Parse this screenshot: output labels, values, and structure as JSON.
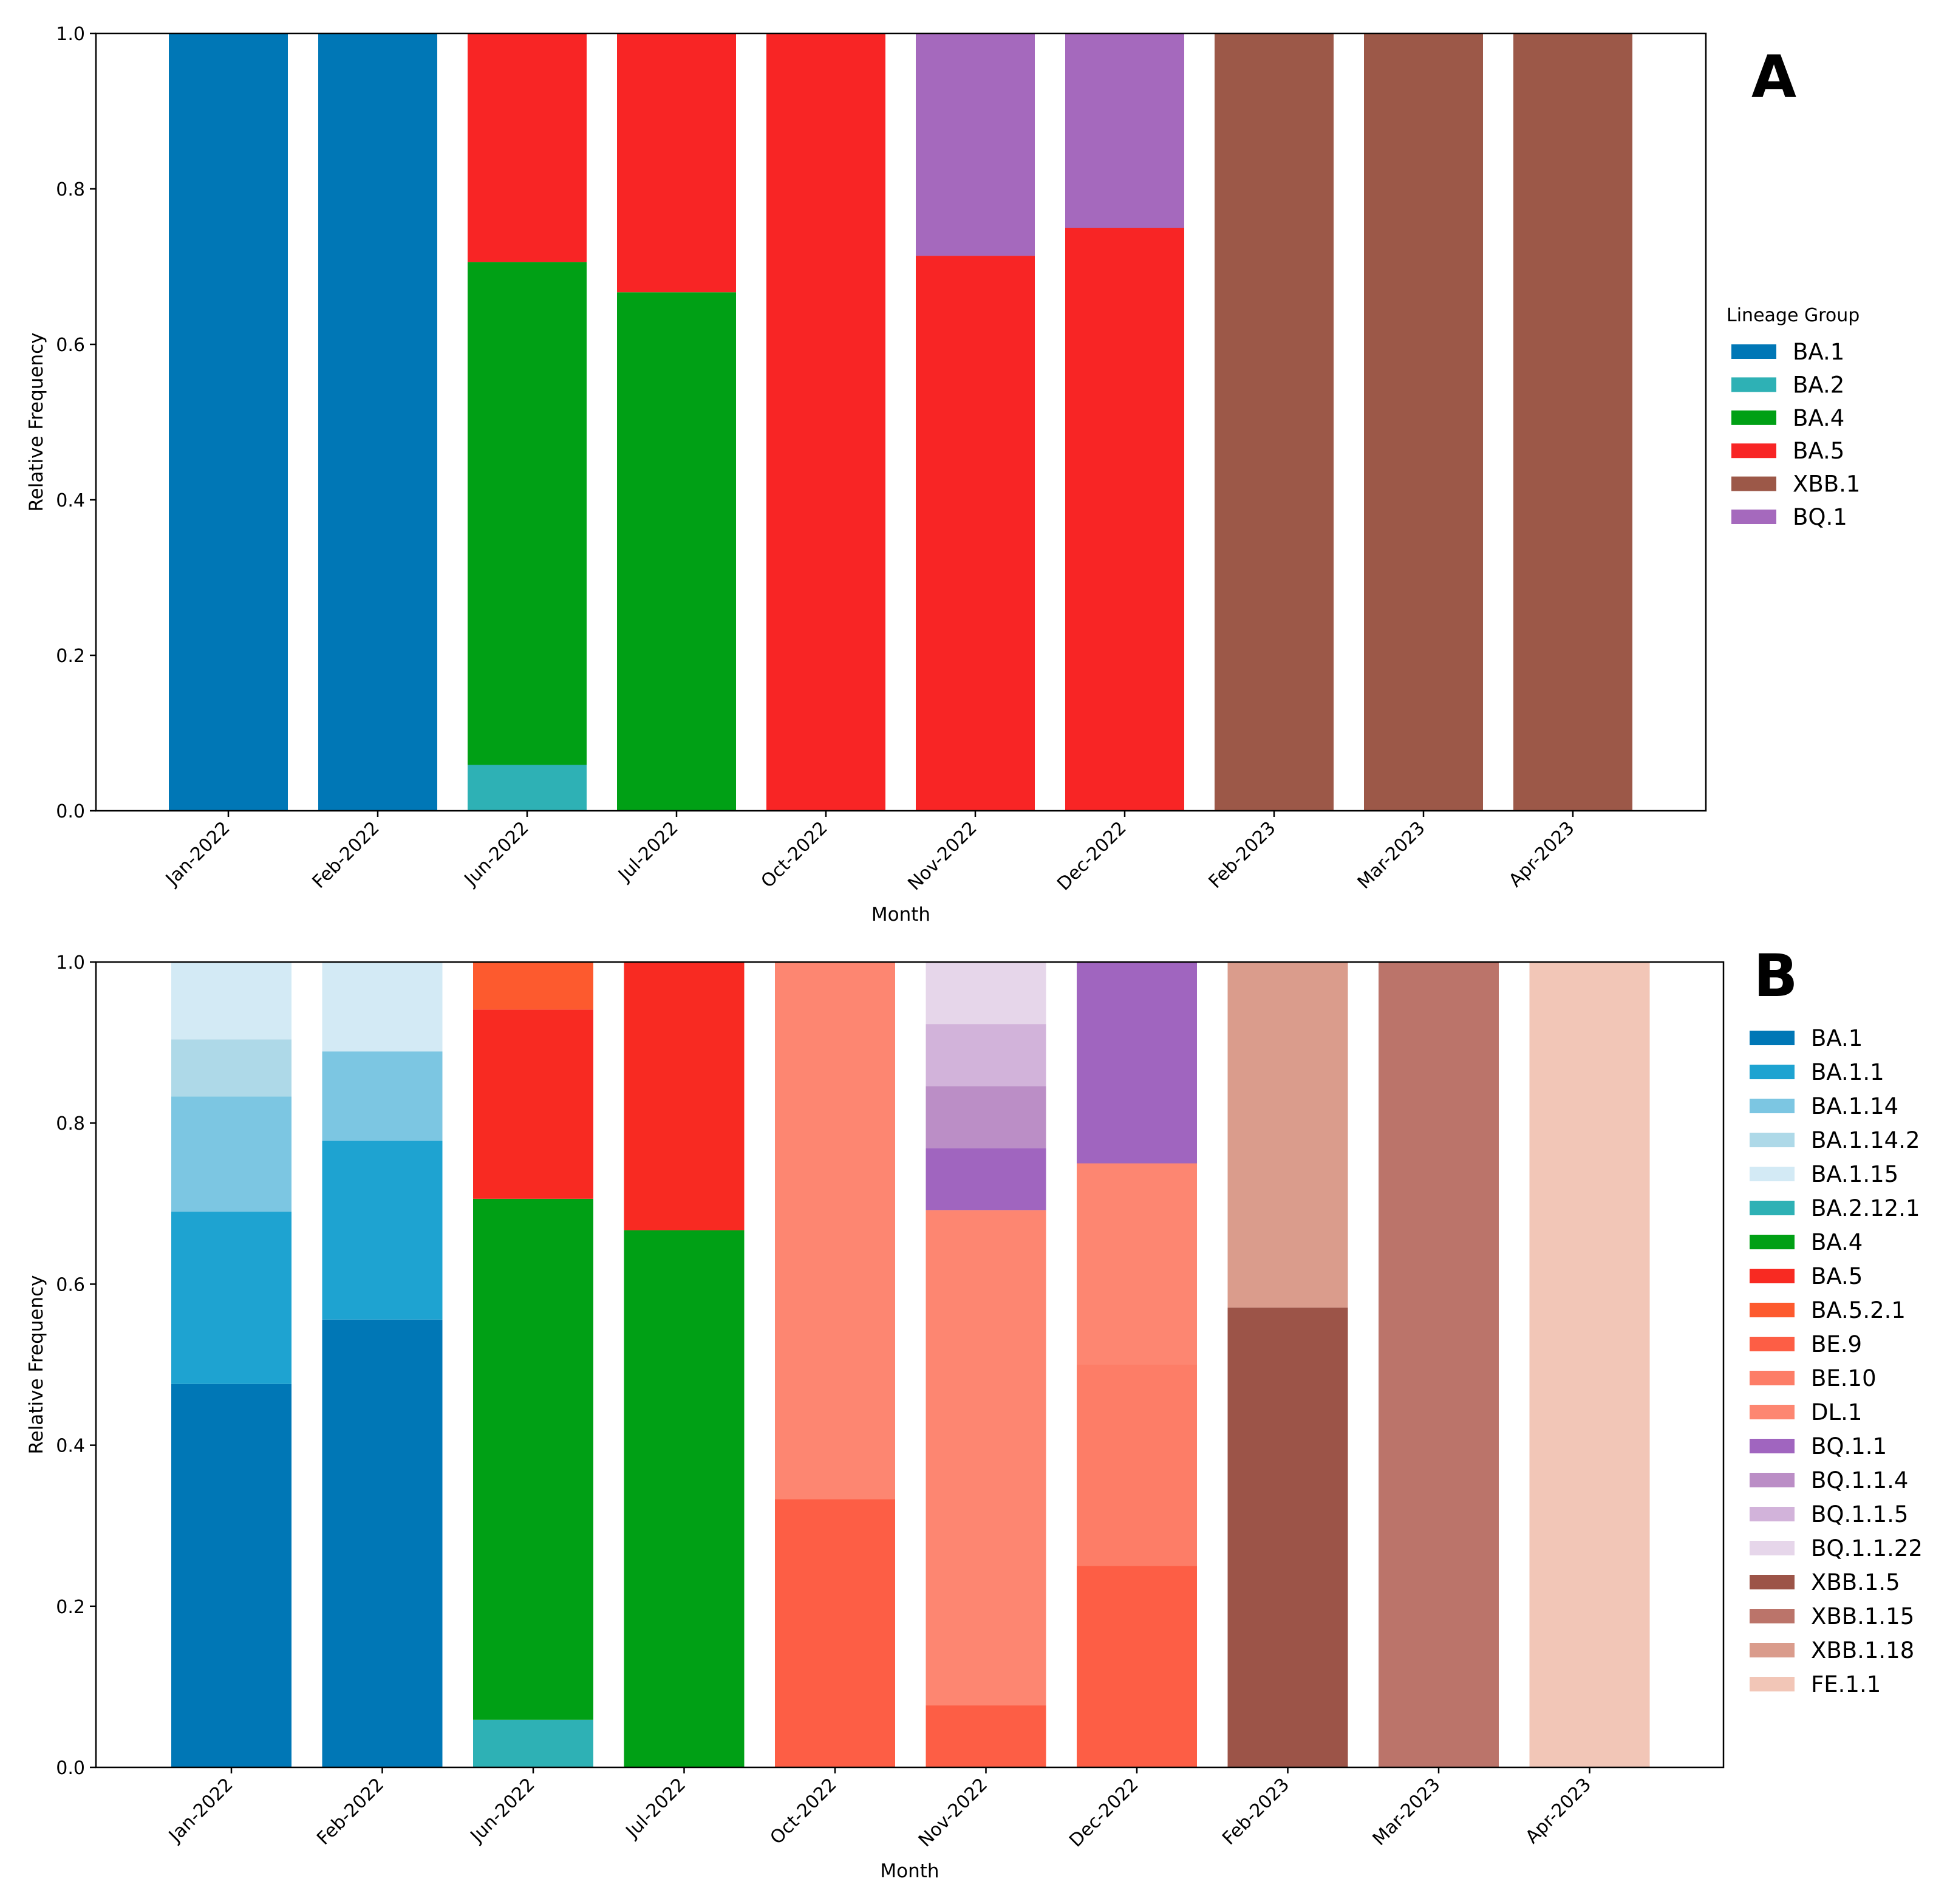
{
  "chart_data": [
    {
      "type": "bar",
      "stacked": true,
      "panel_label": "A",
      "xlabel": "Month",
      "ylabel": "Relative Frequency",
      "ylim": [
        0,
        1.0
      ],
      "yticks": [
        "0.0",
        "0.2",
        "0.4",
        "0.6",
        "0.8",
        "1.0"
      ],
      "grid": false,
      "legend_title": "Lineage Group",
      "legend_position": "right",
      "categories": [
        "Jan-2022",
        "Feb-2022",
        "Jun-2022",
        "Jul-2022",
        "Oct-2022",
        "Nov-2022",
        "Dec-2022",
        "Feb-2023",
        "Mar-2023",
        "Apr-2023"
      ],
      "series": [
        {
          "name": "BA.1",
          "color": "#0077b6",
          "values": [
            1.0,
            1.0,
            0,
            0,
            0,
            0,
            0,
            0,
            0,
            0
          ]
        },
        {
          "name": "BA.2",
          "color": "#2eb1b5",
          "values": [
            0,
            0,
            0.059,
            0,
            0,
            0,
            0,
            0,
            0,
            0
          ]
        },
        {
          "name": "BA.4",
          "color": "#00a015",
          "values": [
            0,
            0,
            0.647,
            0.667,
            0,
            0,
            0,
            0,
            0,
            0
          ]
        },
        {
          "name": "BA.5",
          "color": "#f82525",
          "values": [
            0,
            0,
            0.294,
            0.333,
            1.0,
            0.714,
            0.75,
            0,
            0,
            0
          ]
        },
        {
          "name": "XBB.1",
          "color": "#9c5848",
          "values": [
            0,
            0,
            0,
            0,
            0,
            0,
            0,
            1.0,
            1.0,
            1.0
          ]
        },
        {
          "name": "BQ.1",
          "color": "#a569bd",
          "values": [
            0,
            0,
            0,
            0,
            0,
            0.286,
            0.25,
            0,
            0,
            0
          ]
        }
      ]
    },
    {
      "type": "bar",
      "stacked": true,
      "panel_label": "B",
      "xlabel": "Month",
      "ylabel": "Relative Frequency",
      "ylim": [
        0,
        1.0
      ],
      "yticks": [
        "0.0",
        "0.2",
        "0.4",
        "0.6",
        "0.8",
        "1.0"
      ],
      "grid": false,
      "legend_position": "right",
      "categories": [
        "Jan-2022",
        "Feb-2022",
        "Jun-2022",
        "Jul-2022",
        "Oct-2022",
        "Nov-2022",
        "Dec-2022",
        "Feb-2023",
        "Mar-2023",
        "Apr-2023"
      ],
      "series": [
        {
          "name": "BA.1",
          "color": "#0077b6",
          "values": [
            0.476,
            0.556,
            0,
            0,
            0,
            0,
            0,
            0,
            0,
            0
          ]
        },
        {
          "name": "BA.1.1",
          "color": "#1ea3d1",
          "values": [
            0.214,
            0.222,
            0,
            0,
            0,
            0,
            0,
            0,
            0,
            0
          ]
        },
        {
          "name": "BA.1.14",
          "color": "#7cc6e2",
          "values": [
            0.143,
            0.111,
            0,
            0,
            0,
            0,
            0,
            0,
            0,
            0
          ]
        },
        {
          "name": "BA.1.14.2",
          "color": "#aed9e8",
          "values": [
            0.071,
            0,
            0,
            0,
            0,
            0,
            0,
            0,
            0,
            0
          ]
        },
        {
          "name": "BA.1.15",
          "color": "#d3eaf5",
          "values": [
            0.096,
            0.111,
            0,
            0,
            0,
            0,
            0,
            0,
            0,
            0
          ]
        },
        {
          "name": "BA.2.12.1",
          "color": "#2eb1b5",
          "values": [
            0,
            0,
            0.059,
            0,
            0,
            0,
            0,
            0,
            0,
            0
          ]
        },
        {
          "name": "BA.4",
          "color": "#00a015",
          "values": [
            0,
            0,
            0.647,
            0.667,
            0,
            0,
            0,
            0,
            0,
            0
          ]
        },
        {
          "name": "BA.5",
          "color": "#f82a22",
          "values": [
            0,
            0,
            0.235,
            0.333,
            0,
            0,
            0,
            0,
            0,
            0
          ]
        },
        {
          "name": "BA.5.2.1",
          "color": "#fd5a2e",
          "values": [
            0,
            0,
            0.059,
            0,
            0,
            0,
            0,
            0,
            0,
            0
          ]
        },
        {
          "name": "BE.9",
          "color": "#fd5e45",
          "values": [
            0,
            0,
            0,
            0,
            0.333,
            0.077,
            0.25,
            0,
            0,
            0
          ]
        },
        {
          "name": "BE.10",
          "color": "#fd7d67",
          "values": [
            0,
            0,
            0,
            0,
            0,
            0,
            0.25,
            0,
            0,
            0
          ]
        },
        {
          "name": "DL.1",
          "color": "#fd8671",
          "values": [
            0,
            0,
            0,
            0,
            0.667,
            0.615,
            0.25,
            0,
            0,
            0
          ]
        },
        {
          "name": "BQ.1.1",
          "color": "#a065bf",
          "values": [
            0,
            0,
            0,
            0,
            0,
            0.077,
            0.25,
            0,
            0,
            0
          ]
        },
        {
          "name": "BQ.1.1.4",
          "color": "#bb8ec6",
          "values": [
            0,
            0,
            0,
            0,
            0,
            0.077,
            0,
            0,
            0,
            0
          ]
        },
        {
          "name": "BQ.1.1.5",
          "color": "#d2b3da",
          "values": [
            0,
            0,
            0,
            0,
            0,
            0.077,
            0,
            0,
            0,
            0
          ]
        },
        {
          "name": "BQ.1.1.22",
          "color": "#e6d6ea",
          "values": [
            0,
            0,
            0,
            0,
            0,
            0.077,
            0,
            0,
            0,
            0
          ]
        },
        {
          "name": "XBB.1.5",
          "color": "#9c5448",
          "values": [
            0,
            0,
            0,
            0,
            0,
            0,
            0,
            0.571,
            0,
            0
          ]
        },
        {
          "name": "XBB.1.15",
          "color": "#bb746a",
          "values": [
            0,
            0,
            0,
            0,
            0,
            0,
            0,
            0,
            1.0,
            0
          ]
        },
        {
          "name": "XBB.1.18",
          "color": "#da9c8c",
          "values": [
            0,
            0,
            0,
            0,
            0,
            0,
            0,
            0.429,
            0,
            0
          ]
        },
        {
          "name": "FE.1.1",
          "color": "#f2c6b7",
          "values": [
            0,
            0,
            0,
            0,
            0,
            0,
            0,
            0,
            0,
            1.0
          ]
        }
      ]
    }
  ]
}
